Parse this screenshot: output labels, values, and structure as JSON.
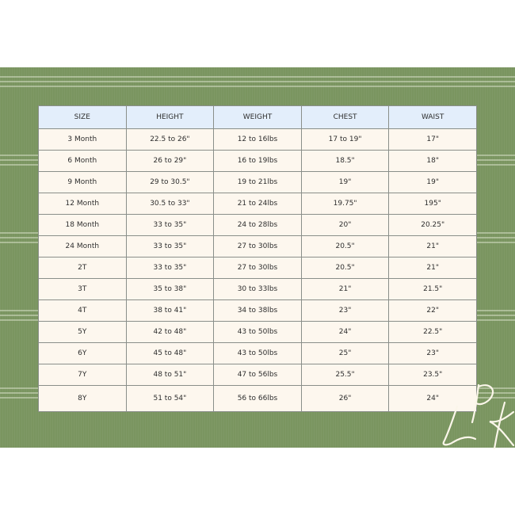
{
  "headers": [
    "SIZE",
    "HEIGHT",
    "WEIGHT",
    "CHEST",
    "WAIST"
  ],
  "rows": [
    [
      "3 Month",
      "22.5 to 26\"",
      "12 to 16lbs",
      "17 to 19\"",
      "17\""
    ],
    [
      "6 Month",
      "26 to 29\"",
      "16 to 19lbs",
      "18.5\"",
      "18\""
    ],
    [
      "9 Month",
      "29 to 30.5\"",
      "19 to 21lbs",
      "19\"",
      "19\""
    ],
    [
      "12 Month",
      "30.5 to 33\"",
      "21 to 24lbs",
      "19.75\"",
      "195\""
    ],
    [
      "18 Month",
      "33 to 35\"",
      "24 to 28lbs",
      "20\"",
      "20.25\""
    ],
    [
      "24 Month",
      "33 to 35\"",
      "27 to 30lbs",
      "20.5\"",
      "21\""
    ],
    [
      "2T",
      "33 to 35\"",
      "27 to 30lbs",
      "20.5\"",
      "21\""
    ],
    [
      "3T",
      "35 to 38\"",
      "30 to 33lbs",
      "21\"",
      "21.5\""
    ],
    [
      "4T",
      "38 to 41\"",
      "34 to 38lbs",
      "23\"",
      "22\""
    ],
    [
      "5Y",
      "42 to 48\"",
      "43 to 50lbs",
      "24\"",
      "22.5\""
    ],
    [
      "6Y",
      "45 to 48\"",
      "43 to 50lbs",
      "25\"",
      "23\""
    ],
    [
      "7Y",
      "48 to 51\"",
      "47 to 56lbs",
      "25.5\"",
      "23.5\""
    ],
    [
      "8Y",
      "51 to 54\"",
      "56 to 66lbs",
      "26\"",
      "24\""
    ]
  ],
  "logo": {
    "text": "LPK"
  },
  "colors": {
    "background_green": "#7a9560",
    "header": "#e3eefb",
    "cell": "#fdf7ee"
  }
}
